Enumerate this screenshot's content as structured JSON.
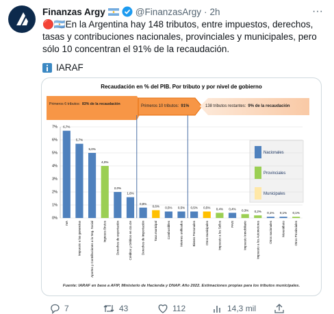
{
  "tweet": {
    "name": "Finanzas Argy",
    "handle": "@FinanzasArgy",
    "separator": "·",
    "time": "2h",
    "text": "🔴🇦🇷En la Argentina hay 148 tributos, entre impuestos, derechos, tasas y contribuciones nacionales, provinciales y municipales, pero sólo 10 concentran el 91% de la recaudación.",
    "source": "IARAF",
    "actions": {
      "replies": 7,
      "retweets": 43,
      "likes": 112,
      "views": "14,3 mil"
    }
  },
  "chart_data": {
    "type": "bar",
    "title": "Recaudación en % del PIB. Por tributo y por nivel de gobierno",
    "categories": [
      "IVA",
      "Impuesto a las ganancias",
      "Aportes y Contribuciones a la Seg. Social",
      "Ingresos Brutos",
      "Derechos de exportación",
      "Créditos y Débitos en cta cte",
      "Derechos de importación",
      "Tasa municipal",
      "Combustibles",
      "Internos unificados",
      "Bienes Personales",
      "Otros municipales",
      "Impuesto a los Sellos",
      "PAIS",
      "Impuesto Inmobiliario",
      "Impuesto a los Automotores",
      "Otros nacionales",
      "Monotributo",
      "Otros Provinciales"
    ],
    "values": [
      6.7,
      5.7,
      5.0,
      4.0,
      2.0,
      1.6,
      0.8,
      0.6,
      0.5,
      0.5,
      0.5,
      0.5,
      0.4,
      0.4,
      0.3,
      0.2,
      0.1,
      0.1,
      0.1
    ],
    "value_labels": [
      "6,7%",
      "5,7%",
      "5,0%",
      "4,0%",
      "2,0%",
      "1,6%",
      "0,8%",
      "0,6%",
      "0,5%",
      "0,5%",
      "0,5%",
      "0,5%",
      "0,4%",
      "0,4%",
      "0,3%",
      "0,2%",
      "0,1%",
      "0,1%",
      "0,1%"
    ],
    "colors": [
      "#4f81bd",
      "#4f81bd",
      "#4f81bd",
      "#9bcf53",
      "#4f81bd",
      "#4f81bd",
      "#4f81bd",
      "#ffc000",
      "#4f81bd",
      "#4f81bd",
      "#4f81bd",
      "#ffc000",
      "#9bcf53",
      "#4f81bd",
      "#9bcf53",
      "#9bcf53",
      "#4f81bd",
      "#4f81bd",
      "#9bcf53"
    ],
    "legend": [
      {
        "name": "Nacionales",
        "color": "#4f81bd"
      },
      {
        "name": "Provinciales",
        "color": "#9bcf53"
      },
      {
        "name": "Municipales",
        "color": "#ffe8a8"
      }
    ],
    "ylim": [
      0,
      7
    ],
    "yticks": [
      {
        "value": 0,
        "label": "0%"
      },
      {
        "value": 1,
        "label": "1%"
      },
      {
        "value": 2,
        "label": "2%"
      },
      {
        "value": 3,
        "label": "3%"
      },
      {
        "value": 4,
        "label": "4%"
      },
      {
        "value": 5,
        "label": "5%"
      },
      {
        "value": 6,
        "label": "6%"
      },
      {
        "value": 7,
        "label": "7%"
      }
    ],
    "grid": true,
    "annotations": [
      {
        "text": "Primeros 6 tributos:",
        "bold": "83% de la recaudación"
      },
      {
        "text": "Primeros 10 tributos:",
        "bold": "91%"
      },
      {
        "text": "138 tributos restantes:",
        "bold": "9% de la recaudación"
      }
    ],
    "footnote": "Fuente: IARAF en base a AFIP, Ministerio de Hacienda y DNAP. Año 2022. Estimaciones propias para los tributos municipales."
  }
}
